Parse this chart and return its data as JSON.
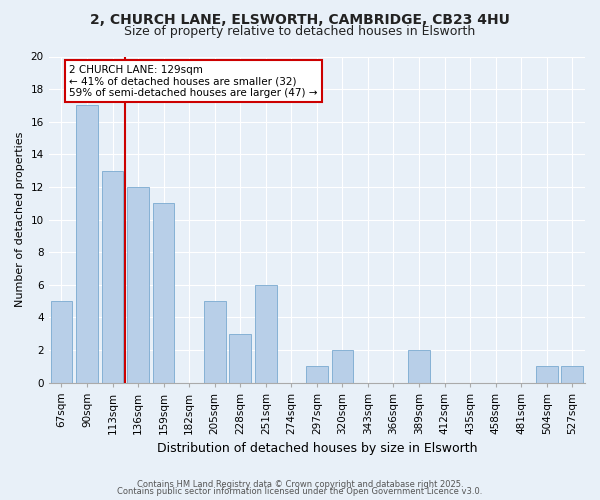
{
  "title1": "2, CHURCH LANE, ELSWORTH, CAMBRIDGE, CB23 4HU",
  "title2": "Size of property relative to detached houses in Elsworth",
  "xlabel": "Distribution of detached houses by size in Elsworth",
  "ylabel": "Number of detached properties",
  "categories": [
    "67sqm",
    "90sqm",
    "113sqm",
    "136sqm",
    "159sqm",
    "182sqm",
    "205sqm",
    "228sqm",
    "251sqm",
    "274sqm",
    "297sqm",
    "320sqm",
    "343sqm",
    "366sqm",
    "389sqm",
    "412sqm",
    "435sqm",
    "458sqm",
    "481sqm",
    "504sqm",
    "527sqm"
  ],
  "values": [
    5,
    17,
    13,
    12,
    11,
    0,
    5,
    3,
    6,
    0,
    1,
    2,
    0,
    0,
    2,
    0,
    0,
    0,
    0,
    1,
    1
  ],
  "bar_color": "#b8cfe8",
  "bar_edge_color": "#7aaad0",
  "annotation_lines": [
    "2 CHURCH LANE: 129sqm",
    "← 41% of detached houses are smaller (32)",
    "59% of semi-detached houses are larger (47) →"
  ],
  "annotation_box_facecolor": "#ffffff",
  "annotation_box_edgecolor": "#cc0000",
  "vline_color": "#cc0000",
  "vline_x": 2.5,
  "ylim": [
    0,
    20
  ],
  "yticks": [
    0,
    2,
    4,
    6,
    8,
    10,
    12,
    14,
    16,
    18,
    20
  ],
  "footnote1": "Contains HM Land Registry data © Crown copyright and database right 2025.",
  "footnote2": "Contains public sector information licensed under the Open Government Licence v3.0.",
  "bg_color": "#e8f0f8",
  "plot_bg_color": "#e8f0f8",
  "grid_color": "#ffffff",
  "title1_fontsize": 10,
  "title2_fontsize": 9,
  "ylabel_fontsize": 8,
  "xlabel_fontsize": 9,
  "tick_fontsize": 7.5,
  "annotation_fontsize": 7.5,
  "footnote_fontsize": 6
}
